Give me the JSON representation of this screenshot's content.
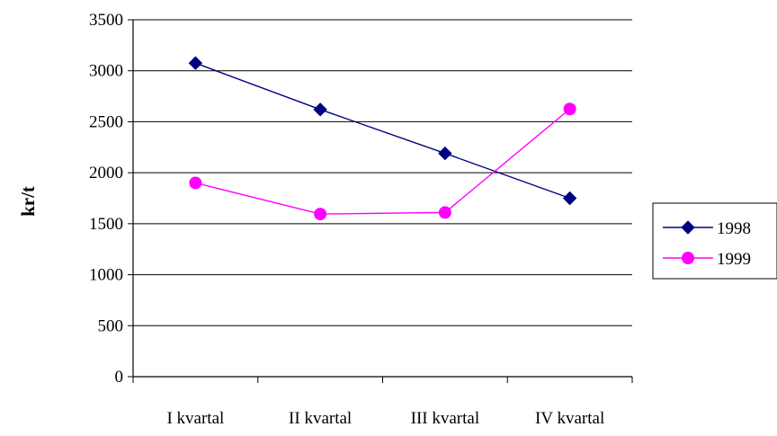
{
  "chart_data": {
    "type": "line",
    "title": "",
    "xlabel": "",
    "ylabel": "kr/t",
    "categories": [
      "I kvartal",
      "II kvartal",
      "III kvartal",
      "IV kvartal"
    ],
    "ylim": [
      0,
      3500
    ],
    "yticks": [
      0,
      500,
      1000,
      1500,
      2000,
      2500,
      3000,
      3500
    ],
    "grid": true,
    "legend_position": "right",
    "series": [
      {
        "name": "1998",
        "values": [
          3075,
          2620,
          2190,
          1750
        ],
        "color": "#000080",
        "marker": "diamond"
      },
      {
        "name": "1999",
        "values": [
          1900,
          1595,
          1610,
          2625
        ],
        "color": "#ff00ff",
        "marker": "circle"
      }
    ]
  }
}
